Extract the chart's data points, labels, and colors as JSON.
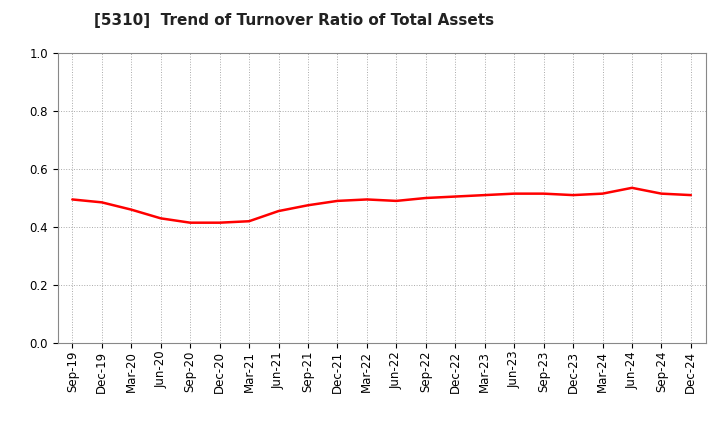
{
  "title": "[5310]  Trend of Turnover Ratio of Total Assets",
  "x_labels": [
    "Sep-19",
    "Dec-19",
    "Mar-20",
    "Jun-20",
    "Sep-20",
    "Dec-20",
    "Mar-21",
    "Jun-21",
    "Sep-21",
    "Dec-21",
    "Mar-22",
    "Jun-22",
    "Sep-22",
    "Dec-22",
    "Mar-23",
    "Jun-23",
    "Sep-23",
    "Dec-23",
    "Mar-24",
    "Jun-24",
    "Sep-24",
    "Dec-24"
  ],
  "y_values": [
    0.495,
    0.485,
    0.46,
    0.43,
    0.415,
    0.415,
    0.42,
    0.455,
    0.475,
    0.49,
    0.495,
    0.49,
    0.5,
    0.505,
    0.51,
    0.515,
    0.515,
    0.51,
    0.515,
    0.535,
    0.515,
    0.51
  ],
  "line_color": "#FF0000",
  "line_width": 1.8,
  "ylim": [
    0.0,
    1.0
  ],
  "yticks": [
    0.0,
    0.2,
    0.4,
    0.6,
    0.8,
    1.0
  ],
  "background_color": "#ffffff",
  "grid_color": "#aaaaaa",
  "title_fontsize": 11,
  "tick_fontsize": 8.5
}
